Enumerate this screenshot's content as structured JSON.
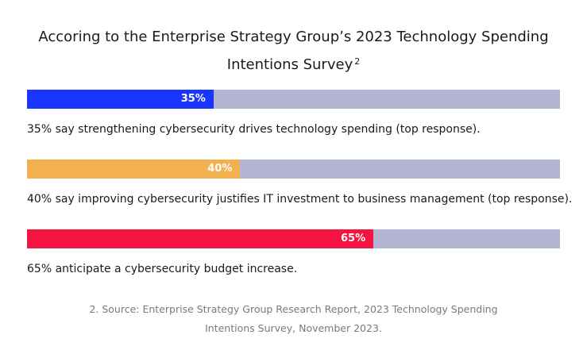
{
  "chart_data": {
    "type": "bar",
    "title_line1": "Accoring to the Enterprise Strategy Group’s 2023 Technology Spending",
    "title_line2": "Intentions Survey",
    "title_footnote_mark": "2",
    "xlim": [
      0,
      100
    ],
    "bars": [
      {
        "value": 35,
        "label": "35%",
        "caption": "35% say strengthening cybersecurity drives technology spending (top response).",
        "color": "#1a35ff"
      },
      {
        "value": 40,
        "label": "40%",
        "caption": "40% say improving cybersecurity justifies IT investment to business management (top response).",
        "color": "#f2b04f"
      },
      {
        "value": 65,
        "label": "65%",
        "caption": "65% anticipate a cybersecurity budget increase.",
        "color": "#f5133f"
      }
    ],
    "track_color": "#b3b3d4",
    "footnote_line1": "2. Source: Enterprise Strategy Group Research Report, 2023 Technology Spending",
    "footnote_line2": "Intentions Survey, November 2023."
  }
}
